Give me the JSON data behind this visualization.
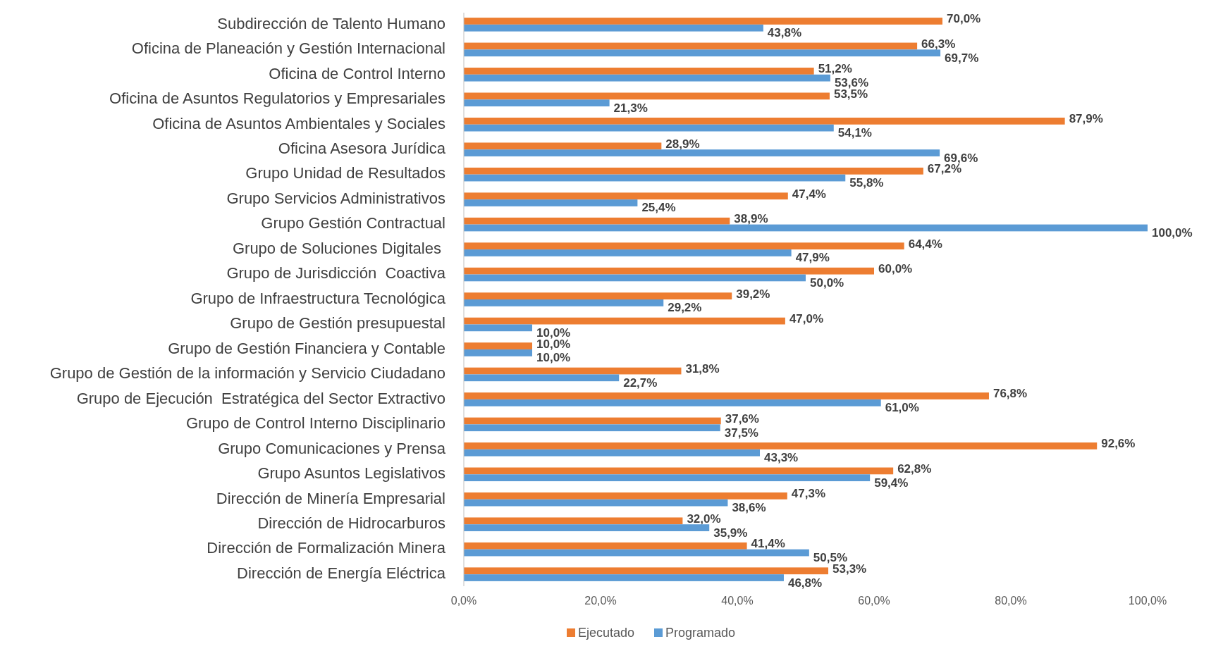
{
  "chart_data": {
    "type": "bar",
    "orientation": "horizontal",
    "categories": [
      "Subdirección de Talento Humano",
      "Oficina de Planeación y Gestión Internacional",
      "Oficina de Control Interno",
      "Oficina de Asuntos Regulatorios y Empresariales",
      "Oficina de Asuntos Ambientales y Sociales",
      "Oficina Asesora Jurídica",
      "Grupo Unidad de Resultados",
      "Grupo Servicios Administrativos",
      "Grupo Gestión Contractual",
      "Grupo de Soluciones Digitales ",
      "Grupo de Jurisdicción  Coactiva",
      "Grupo de Infraestructura Tecnológica",
      "Grupo de Gestión presupuestal",
      "Grupo de Gestión Financiera y Contable",
      "Grupo de Gestión de la información y Servicio Ciudadano",
      "Grupo de Ejecución  Estratégica del Sector Extractivo",
      "Grupo de Control Interno Disciplinario",
      "Grupo Comunicaciones y Prensa",
      "Grupo Asuntos Legislativos",
      "Dirección de Minería Empresarial",
      "Dirección de Hidrocarburos",
      "Dirección de Formalización Minera",
      "Dirección de Energía Eléctrica"
    ],
    "series": [
      {
        "name": "Ejecutado",
        "color": "#ed7d31",
        "values": [
          70.0,
          66.3,
          51.2,
          53.5,
          87.9,
          28.9,
          67.2,
          47.4,
          38.9,
          64.4,
          60.0,
          39.2,
          47.0,
          10.0,
          31.8,
          76.8,
          37.6,
          92.6,
          62.8,
          47.3,
          32.0,
          41.4,
          53.3
        ],
        "value_labels": [
          "70,0%",
          "66,3%",
          "51,2%",
          "53,5%",
          "87,9%",
          "28,9%",
          "67,2%",
          "47,4%",
          "38,9%",
          "64,4%",
          "60,0%",
          "39,2%",
          "47,0%",
          "10,0%",
          "31,8%",
          "76,8%",
          "37,6%",
          "92,6%",
          "62,8%",
          "47,3%",
          "32,0%",
          "41,4%",
          "53,3%"
        ]
      },
      {
        "name": "Programado",
        "color": "#5b9bd5",
        "values": [
          43.8,
          69.7,
          53.6,
          21.3,
          54.1,
          69.6,
          55.8,
          25.4,
          100.0,
          47.9,
          50.0,
          29.2,
          10.0,
          10.0,
          22.7,
          61.0,
          37.5,
          43.3,
          59.4,
          38.6,
          35.9,
          50.5,
          46.8
        ],
        "value_labels": [
          "43,8%",
          "69,7%",
          "53,6%",
          "21,3%",
          "54,1%",
          "69,6%",
          "55,8%",
          "25,4%",
          "100,0%",
          "47,9%",
          "50,0%",
          "29,2%",
          "10,0%",
          "10,0%",
          "22,7%",
          "61,0%",
          "37,5%",
          "43,3%",
          "59,4%",
          "38,6%",
          "35,9%",
          "50,5%",
          "46,8%"
        ]
      }
    ],
    "xlim": [
      0,
      100
    ],
    "xticks": [
      {
        "value": 0,
        "label": "0,0%"
      },
      {
        "value": 20,
        "label": "20,0%"
      },
      {
        "value": 40,
        "label": "40,0%"
      },
      {
        "value": 60,
        "label": "60,0%"
      },
      {
        "value": 80,
        "label": "80,0%"
      },
      {
        "value": 100,
        "label": "100,0%"
      }
    ],
    "grid": false,
    "legend": "bottom"
  }
}
